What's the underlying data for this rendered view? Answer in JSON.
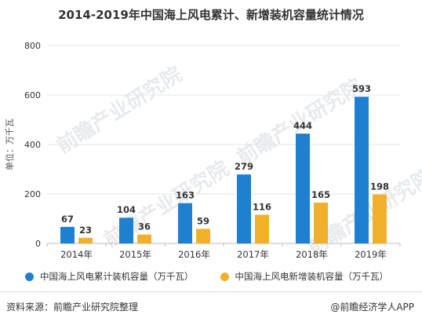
{
  "title": "2014-2019年中国海上风电累计、新增装机容量统计情况",
  "watermark_text": "前瞻产业研究院",
  "legend": {
    "series1": "中国海上风电累计装机容量（万千瓦）",
    "series2": "中国海上风电新增装机容量（万千瓦）"
  },
  "footer": {
    "source": "资料来源：前瞻产业研究院整理",
    "credit": "@前瞻经济学人APP"
  },
  "colors": {
    "series1": "#1f7fd1",
    "series2": "#f0b02a"
  },
  "chart_data": {
    "type": "bar",
    "title": "2014-2019年中国海上风电累计、新增装机容量统计情况",
    "ylabel": "单位：万千瓦",
    "xlabel": "",
    "categories": [
      "2014年",
      "2015年",
      "2016年",
      "2017年",
      "2018年",
      "2019年"
    ],
    "ylim": [
      0,
      800
    ],
    "yticks": [
      0,
      200,
      400,
      600,
      800
    ],
    "grid": true,
    "legend_position": "bottom",
    "series": [
      {
        "name": "中国海上风电累计装机容量（万千瓦）",
        "values": [
          67,
          104,
          163,
          279,
          444,
          593
        ]
      },
      {
        "name": "中国海上风电新增装机容量（万千瓦）",
        "values": [
          23,
          36,
          59,
          116,
          165,
          198
        ]
      }
    ]
  }
}
